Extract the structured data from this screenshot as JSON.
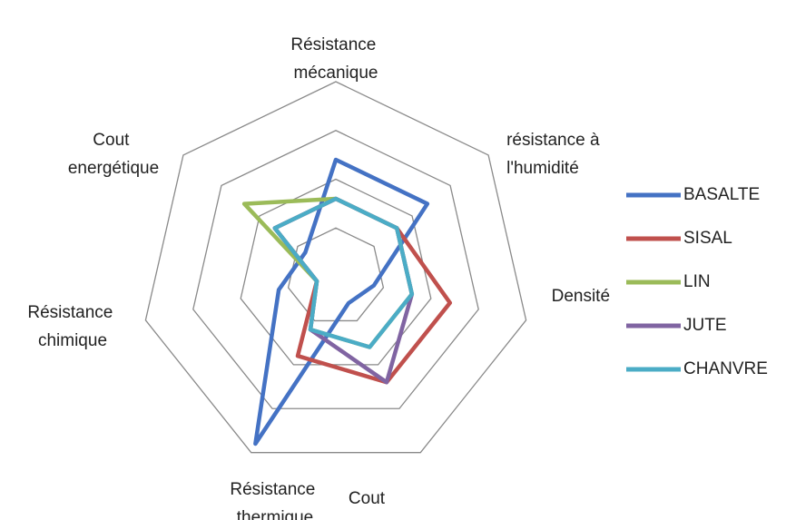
{
  "chart_data": {
    "type": "radar",
    "categories": [
      "Résistance mécanique",
      "résistance à l'humidité",
      "Densité",
      "Cout",
      "Résistance thermique",
      "Résistance chimique",
      "Cout energétique"
    ],
    "rlim": [
      0,
      4
    ],
    "rticks": [
      1,
      2,
      3,
      4
    ],
    "grid": true,
    "legend": "right",
    "series": [
      {
        "name": "BASALTE",
        "color": "#4472C4",
        "values": [
          2.4,
          2.4,
          0.8,
          0.6,
          3.8,
          1.2,
          0.8
        ]
      },
      {
        "name": "SISAL",
        "color": "#C0504D",
        "values": [
          1.6,
          1.6,
          2.4,
          2.4,
          1.8,
          0.4,
          1.6
        ]
      },
      {
        "name": "LIN",
        "color": "#9BBB59",
        "values": [
          1.6,
          1.6,
          1.6,
          1.6,
          1.2,
          0.4,
          2.4
        ]
      },
      {
        "name": "JUTE",
        "color": "#8064A2",
        "values": [
          1.6,
          1.6,
          1.6,
          2.4,
          1.2,
          0.4,
          1.6
        ]
      },
      {
        "name": "CHANVRE",
        "color": "#4BACC6",
        "values": [
          1.6,
          1.6,
          1.6,
          1.6,
          1.2,
          0.4,
          1.6
        ]
      }
    ]
  }
}
